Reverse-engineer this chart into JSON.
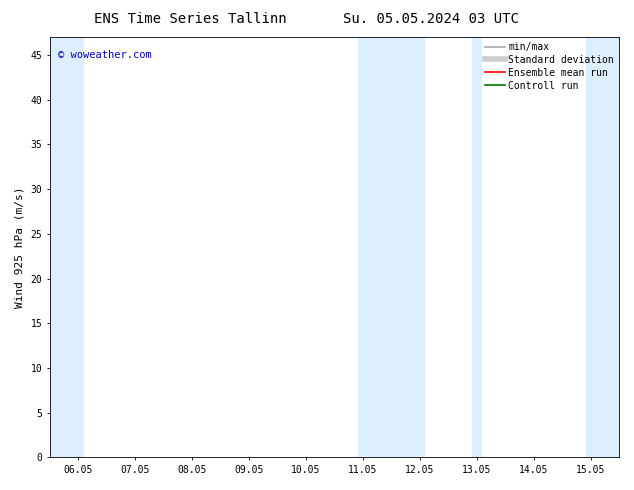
{
  "title_left": "ENS Time Series Tallinn",
  "title_right": "Su. 05.05.2024 03 UTC",
  "ylabel": "Wind 925 hPa (m/s)",
  "watermark": "© woweather.com",
  "xtick_labels": [
    "06.05",
    "07.05",
    "08.05",
    "09.05",
    "10.05",
    "11.05",
    "12.05",
    "13.05",
    "14.05",
    "15.05"
  ],
  "xtick_positions": [
    0,
    1,
    2,
    3,
    4,
    5,
    6,
    7,
    8,
    9
  ],
  "ylim": [
    0,
    47
  ],
  "xlim": [
    -0.5,
    9.5
  ],
  "ytick_positions": [
    0,
    5,
    10,
    15,
    20,
    25,
    30,
    35,
    40,
    45
  ],
  "ytick_labels": [
    "0",
    "5",
    "10",
    "15",
    "20",
    "25",
    "30",
    "35",
    "40",
    "45"
  ],
  "background_color": "#ffffff",
  "plot_bg_color": "#ffffff",
  "shaded_bands": [
    {
      "xmin": -0.5,
      "xmax": 0.08,
      "color": "#ddeeff"
    },
    {
      "xmin": 4.92,
      "xmax": 5.5,
      "color": "#ddeeff"
    },
    {
      "xmin": 5.5,
      "xmax": 6.08,
      "color": "#ddeeff"
    },
    {
      "xmin": 6.92,
      "xmax": 7.08,
      "color": "#ddeeff"
    },
    {
      "xmin": 8.92,
      "xmax": 9.5,
      "color": "#ddeeff"
    }
  ],
  "legend_entries": [
    {
      "label": "min/max",
      "color": "#aaaaaa",
      "lw": 1.2,
      "ls": "-"
    },
    {
      "label": "Standard deviation",
      "color": "#cccccc",
      "lw": 4,
      "ls": "-"
    },
    {
      "label": "Ensemble mean run",
      "color": "#ff0000",
      "lw": 1.2,
      "ls": "-"
    },
    {
      "label": "Controll run",
      "color": "#007700",
      "lw": 1.2,
      "ls": "-"
    }
  ],
  "title_fontsize": 10,
  "axis_fontsize": 8,
  "tick_fontsize": 7,
  "legend_fontsize": 7,
  "watermark_color": "#0000cc",
  "watermark_fontsize": 7.5
}
